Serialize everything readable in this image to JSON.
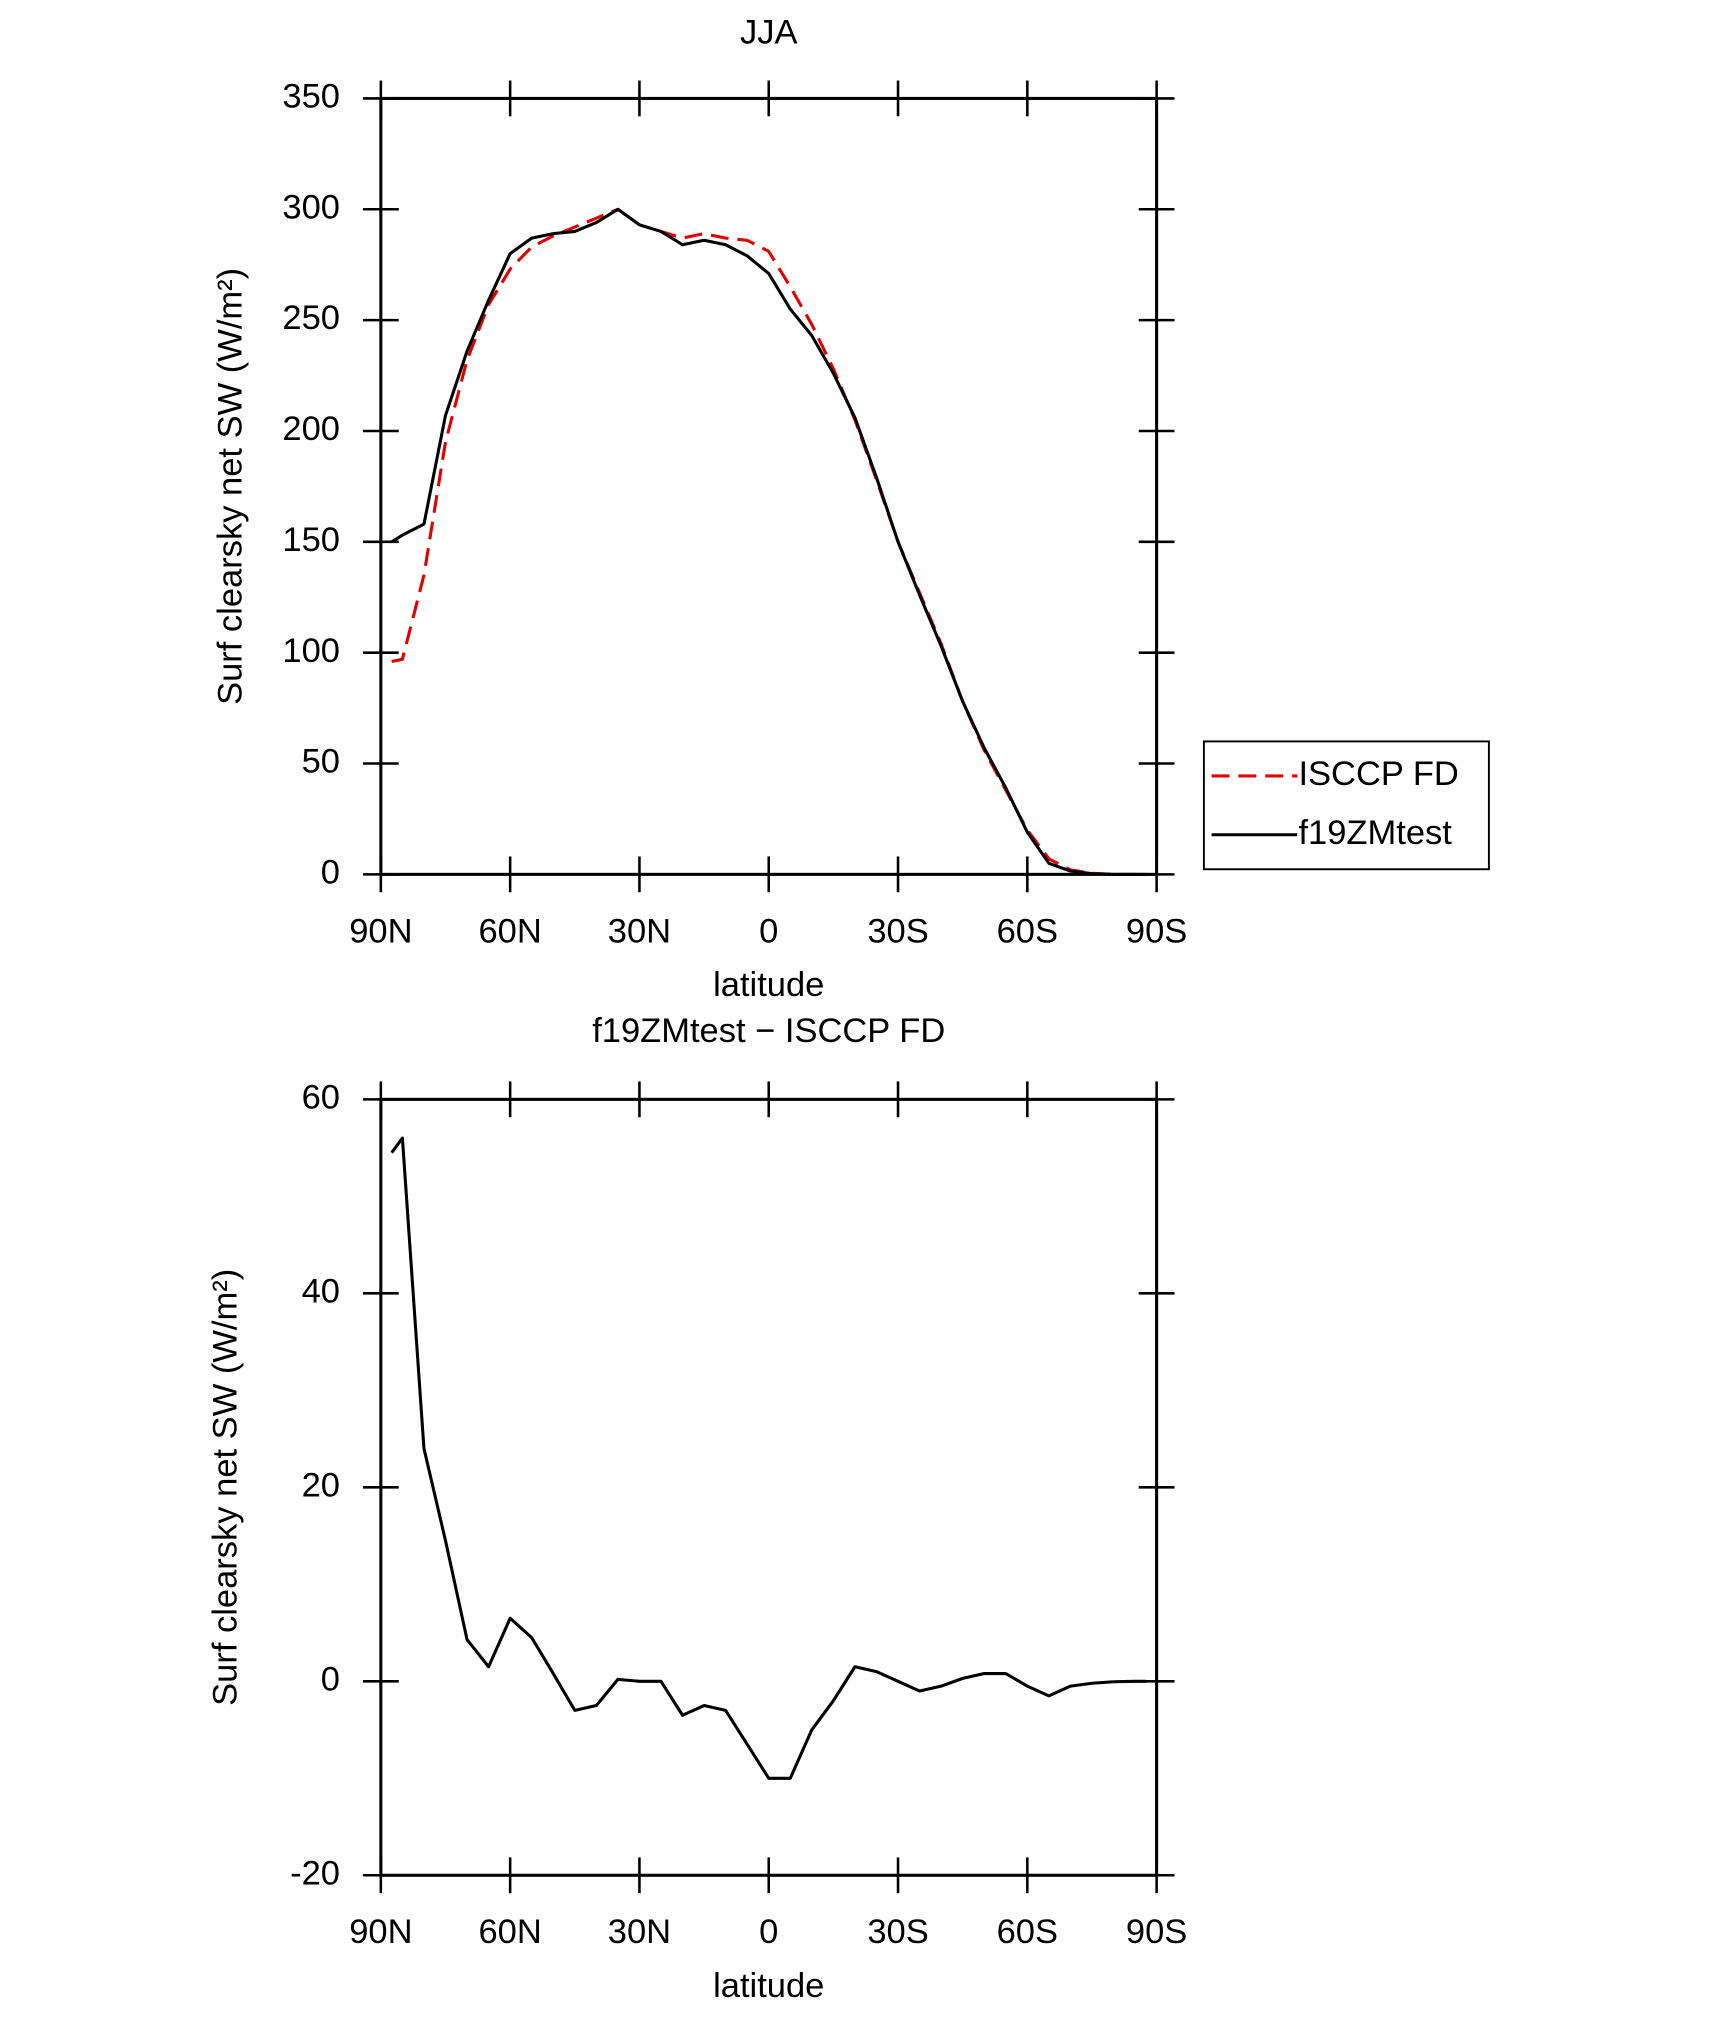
{
  "chart_data": [
    {
      "type": "line",
      "title": "JJA",
      "x_label": "latitude",
      "y_label": "Surf clearsky net SW (W/m²)",
      "x": [
        87.5,
        85,
        80,
        75,
        70,
        65,
        60,
        55,
        50,
        45,
        40,
        35,
        30,
        25,
        20,
        15,
        10,
        5,
        0,
        -5,
        -10,
        -15,
        -20,
        -25,
        -30,
        -35,
        -40,
        -45,
        -50,
        -55,
        -60,
        -65,
        -70,
        -75,
        -80,
        -85,
        -87.5
      ],
      "xlim": [
        90,
        -90
      ],
      "xticks": [
        {
          "value": 90,
          "label": "90N"
        },
        {
          "value": 60,
          "label": "60N"
        },
        {
          "value": 30,
          "label": "30N"
        },
        0,
        {
          "value": -30,
          "label": "30S"
        },
        {
          "value": -60,
          "label": "60S"
        },
        {
          "value": -90,
          "label": "90S"
        }
      ],
      "ylim": [
        0,
        350
      ],
      "yticks": [
        0,
        50,
        100,
        150,
        200,
        250,
        300,
        350
      ],
      "legend": "right",
      "series": [
        {
          "name": "ISCCP FD",
          "color": "#e00000",
          "dashed": true,
          "values": [
            96,
            97,
            135,
            195,
            232,
            257,
            273,
            283,
            288,
            292,
            296,
            300,
            293,
            290,
            287,
            289,
            287,
            286,
            281,
            265,
            248,
            228,
            205,
            178,
            150,
            127,
            104,
            78,
            56,
            38,
            20,
            7,
            2,
            0.5,
            0,
            0,
            0
          ]
        },
        {
          "name": "f19ZMtest",
          "color": "#000000",
          "dashed": false,
          "values": [
            150,
            153,
            158,
            207,
            236,
            259,
            280,
            287,
            289,
            290,
            294,
            300,
            293,
            290,
            284,
            286,
            284,
            279,
            271,
            255,
            243,
            226,
            206,
            179,
            150,
            126,
            103,
            78,
            57,
            39,
            19,
            5,
            1.5,
            0.3,
            0,
            0,
            0
          ]
        }
      ]
    },
    {
      "type": "line",
      "title": "f19ZMtest − ISCCP FD",
      "x_label": "latitude",
      "y_label": "Surf clearsky net SW (W/m²)",
      "x": [
        87.5,
        85,
        80,
        75,
        70,
        65,
        60,
        55,
        50,
        45,
        40,
        35,
        30,
        25,
        20,
        15,
        10,
        5,
        0,
        -5,
        -10,
        -15,
        -20,
        -25,
        -30,
        -35,
        -40,
        -45,
        -50,
        -55,
        -60,
        -65,
        -70,
        -75,
        -80,
        -85,
        -87.5
      ],
      "xlim": [
        90,
        -90
      ],
      "xticks": [
        {
          "value": 90,
          "label": "90N"
        },
        {
          "value": 60,
          "label": "60N"
        },
        {
          "value": 30,
          "label": "30N"
        },
        0,
        {
          "value": -30,
          "label": "30S"
        },
        {
          "value": -60,
          "label": "60S"
        },
        {
          "value": -90,
          "label": "90S"
        }
      ],
      "ylim": [
        -20,
        60
      ],
      "yticks": [
        -20,
        0,
        20,
        40,
        60
      ],
      "series": [
        {
          "color": "#000000",
          "dashed": false,
          "values": [
            54.5,
            56,
            24,
            14.5,
            4.3,
            1.5,
            6.5,
            4.5,
            0.8,
            -3,
            -2.5,
            0.2,
            0,
            0,
            -3.5,
            -2.5,
            -3,
            -6.5,
            -10,
            -10,
            -5,
            -2,
            1.5,
            1,
            0,
            -1,
            -0.5,
            0.3,
            0.8,
            0.8,
            -0.5,
            -1.5,
            -0.5,
            -0.2,
            -0.05,
            0,
            0
          ]
        }
      ]
    }
  ]
}
